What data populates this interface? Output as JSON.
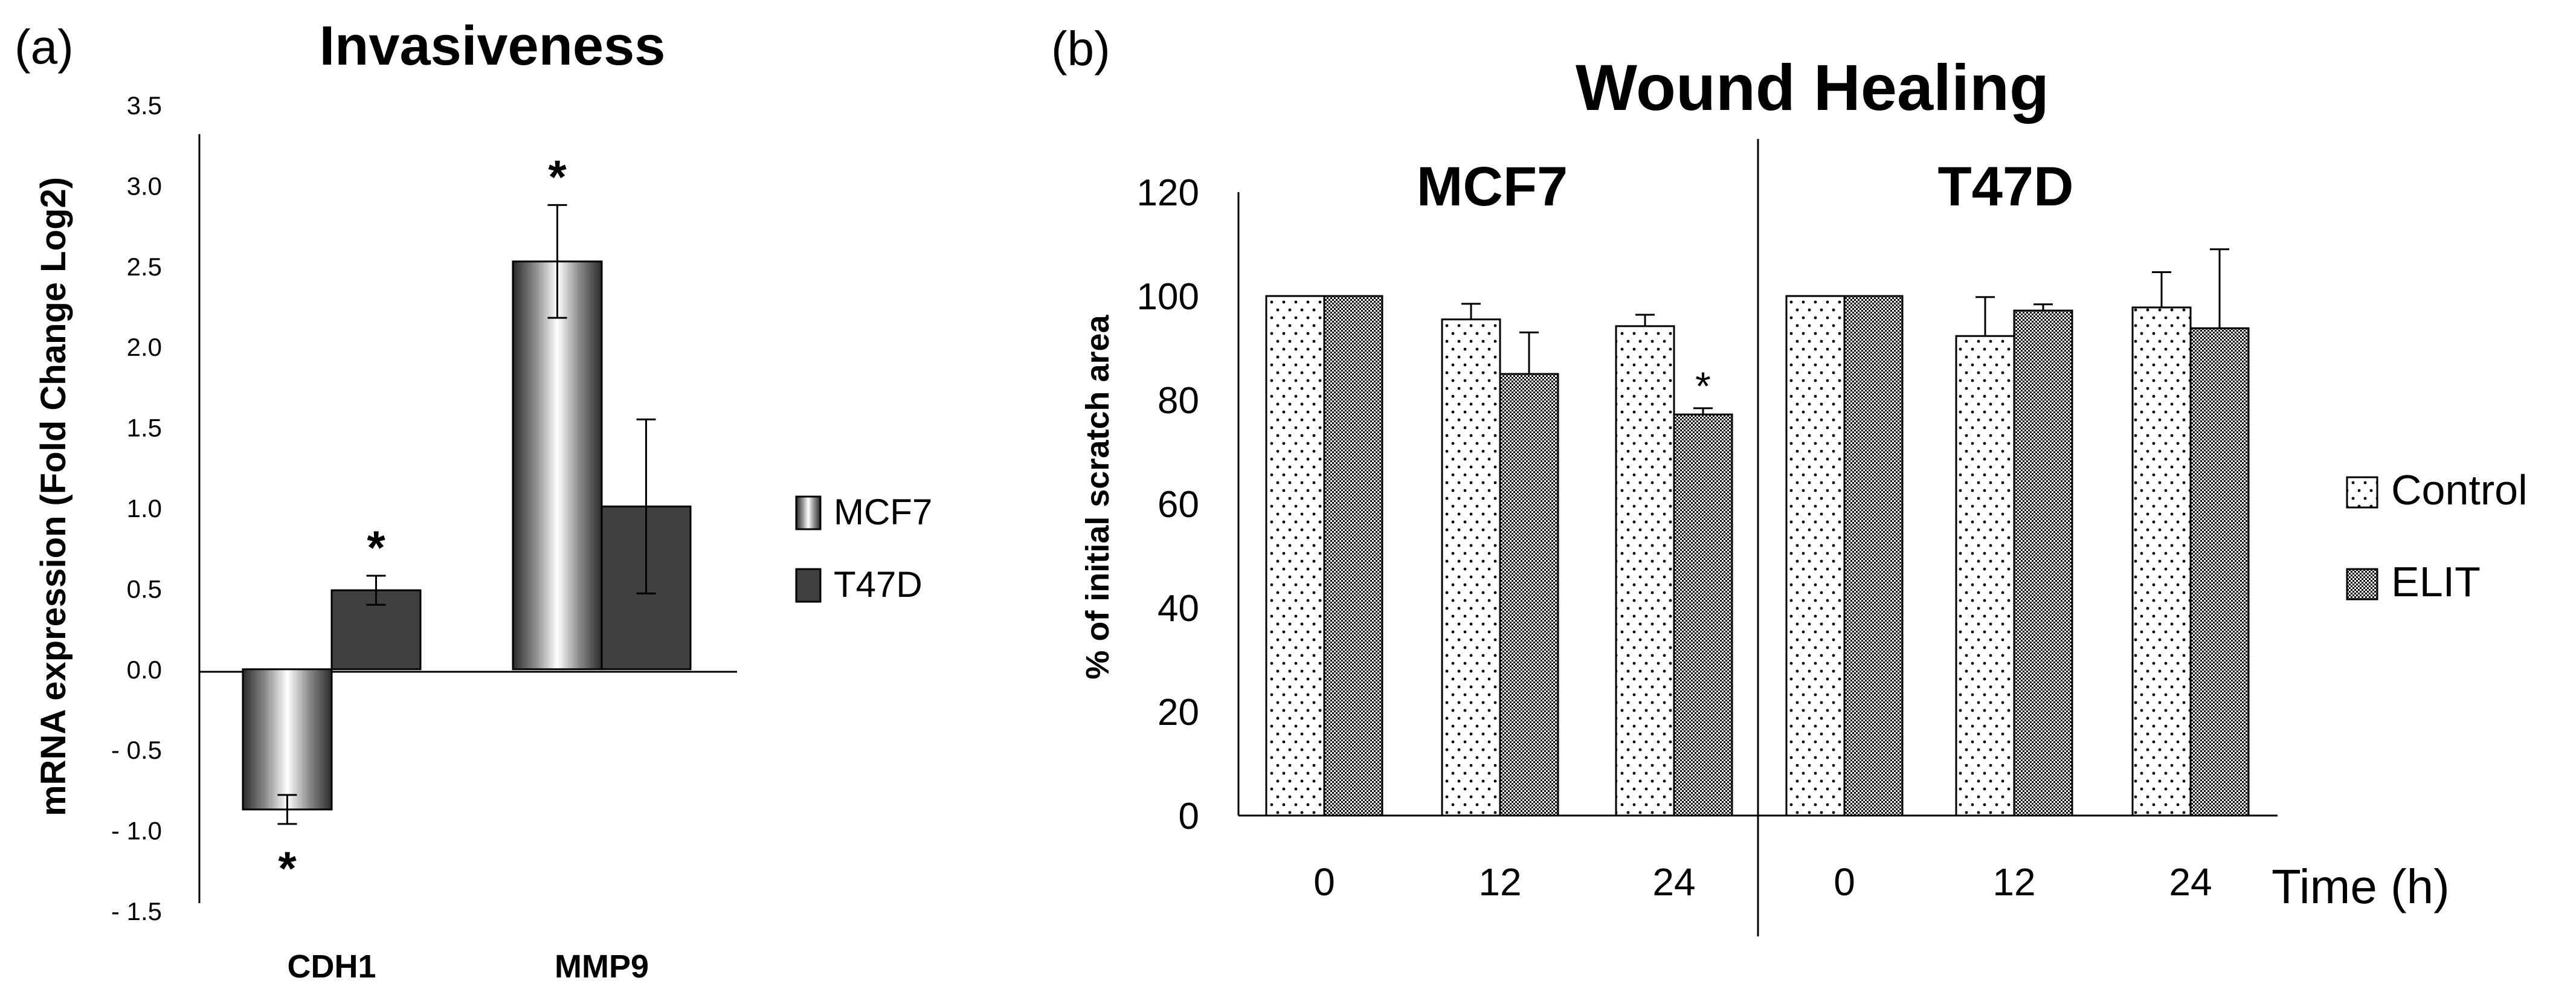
{
  "chart_data": [
    {
      "panel_label": "(a)",
      "type": "bar",
      "title": "Invasiveness",
      "xlabel": "",
      "ylabel": "mRNA expression (Fold Change Log2)",
      "ylim": [
        -1.5,
        3.5
      ],
      "yticks": [
        "3.5",
        "3.0",
        "2.5",
        "2.0",
        "1.5",
        "1.0",
        "0.5",
        "0.0",
        "- 0.5",
        "- 1.0",
        "- 1.5"
      ],
      "categories": [
        "CDH1",
        "MMP9"
      ],
      "series": [
        {
          "name": "MCF7",
          "values": [
            -0.87,
            2.53
          ],
          "errors": [
            0.09,
            0.35
          ],
          "significant": [
            true,
            true
          ]
        },
        {
          "name": "T47D",
          "values": [
            0.49,
            1.01
          ],
          "errors": [
            0.09,
            0.54
          ],
          "significant": [
            true,
            false
          ]
        }
      ],
      "significance_marker": "*",
      "legend_position": "right",
      "colors": {
        "mcf7_fill": "metallic-gradient",
        "t47d_fill": "#404040"
      }
    },
    {
      "panel_label": "(b)",
      "type": "bar",
      "title": "Wound Healing",
      "xlabel": "Time (h)",
      "ylabel": "% of initial scratch area",
      "ylim": [
        0,
        120
      ],
      "yticks": [
        "0",
        "20",
        "40",
        "60",
        "80",
        "100",
        "120"
      ],
      "groups": [
        {
          "name": "MCF7",
          "categories": [
            "0",
            "12",
            "24"
          ],
          "series": [
            {
              "name": "Control",
              "values": [
                100,
                95.5,
                94.2
              ],
              "errors": [
                0,
                3,
                2.2
              ]
            },
            {
              "name": "ELIT",
              "values": [
                100,
                85,
                77.2
              ],
              "errors": [
                0,
                8,
                1.2
              ],
              "significant": [
                false,
                false,
                true
              ]
            }
          ]
        },
        {
          "name": "T47D",
          "categories": [
            "0",
            "12",
            "24"
          ],
          "series": [
            {
              "name": "Control",
              "values": [
                100,
                92.3,
                97.8
              ],
              "errors": [
                0,
                7.5,
                6.8
              ]
            },
            {
              "name": "ELIT",
              "values": [
                100,
                97.2,
                93.8
              ],
              "errors": [
                0,
                1.2,
                15.2
              ]
            }
          ]
        }
      ],
      "significance_marker": "*",
      "legend_position": "right",
      "colors": {
        "control_fill": "dotted-white",
        "elit_fill": "dense-dark-checker"
      }
    }
  ]
}
